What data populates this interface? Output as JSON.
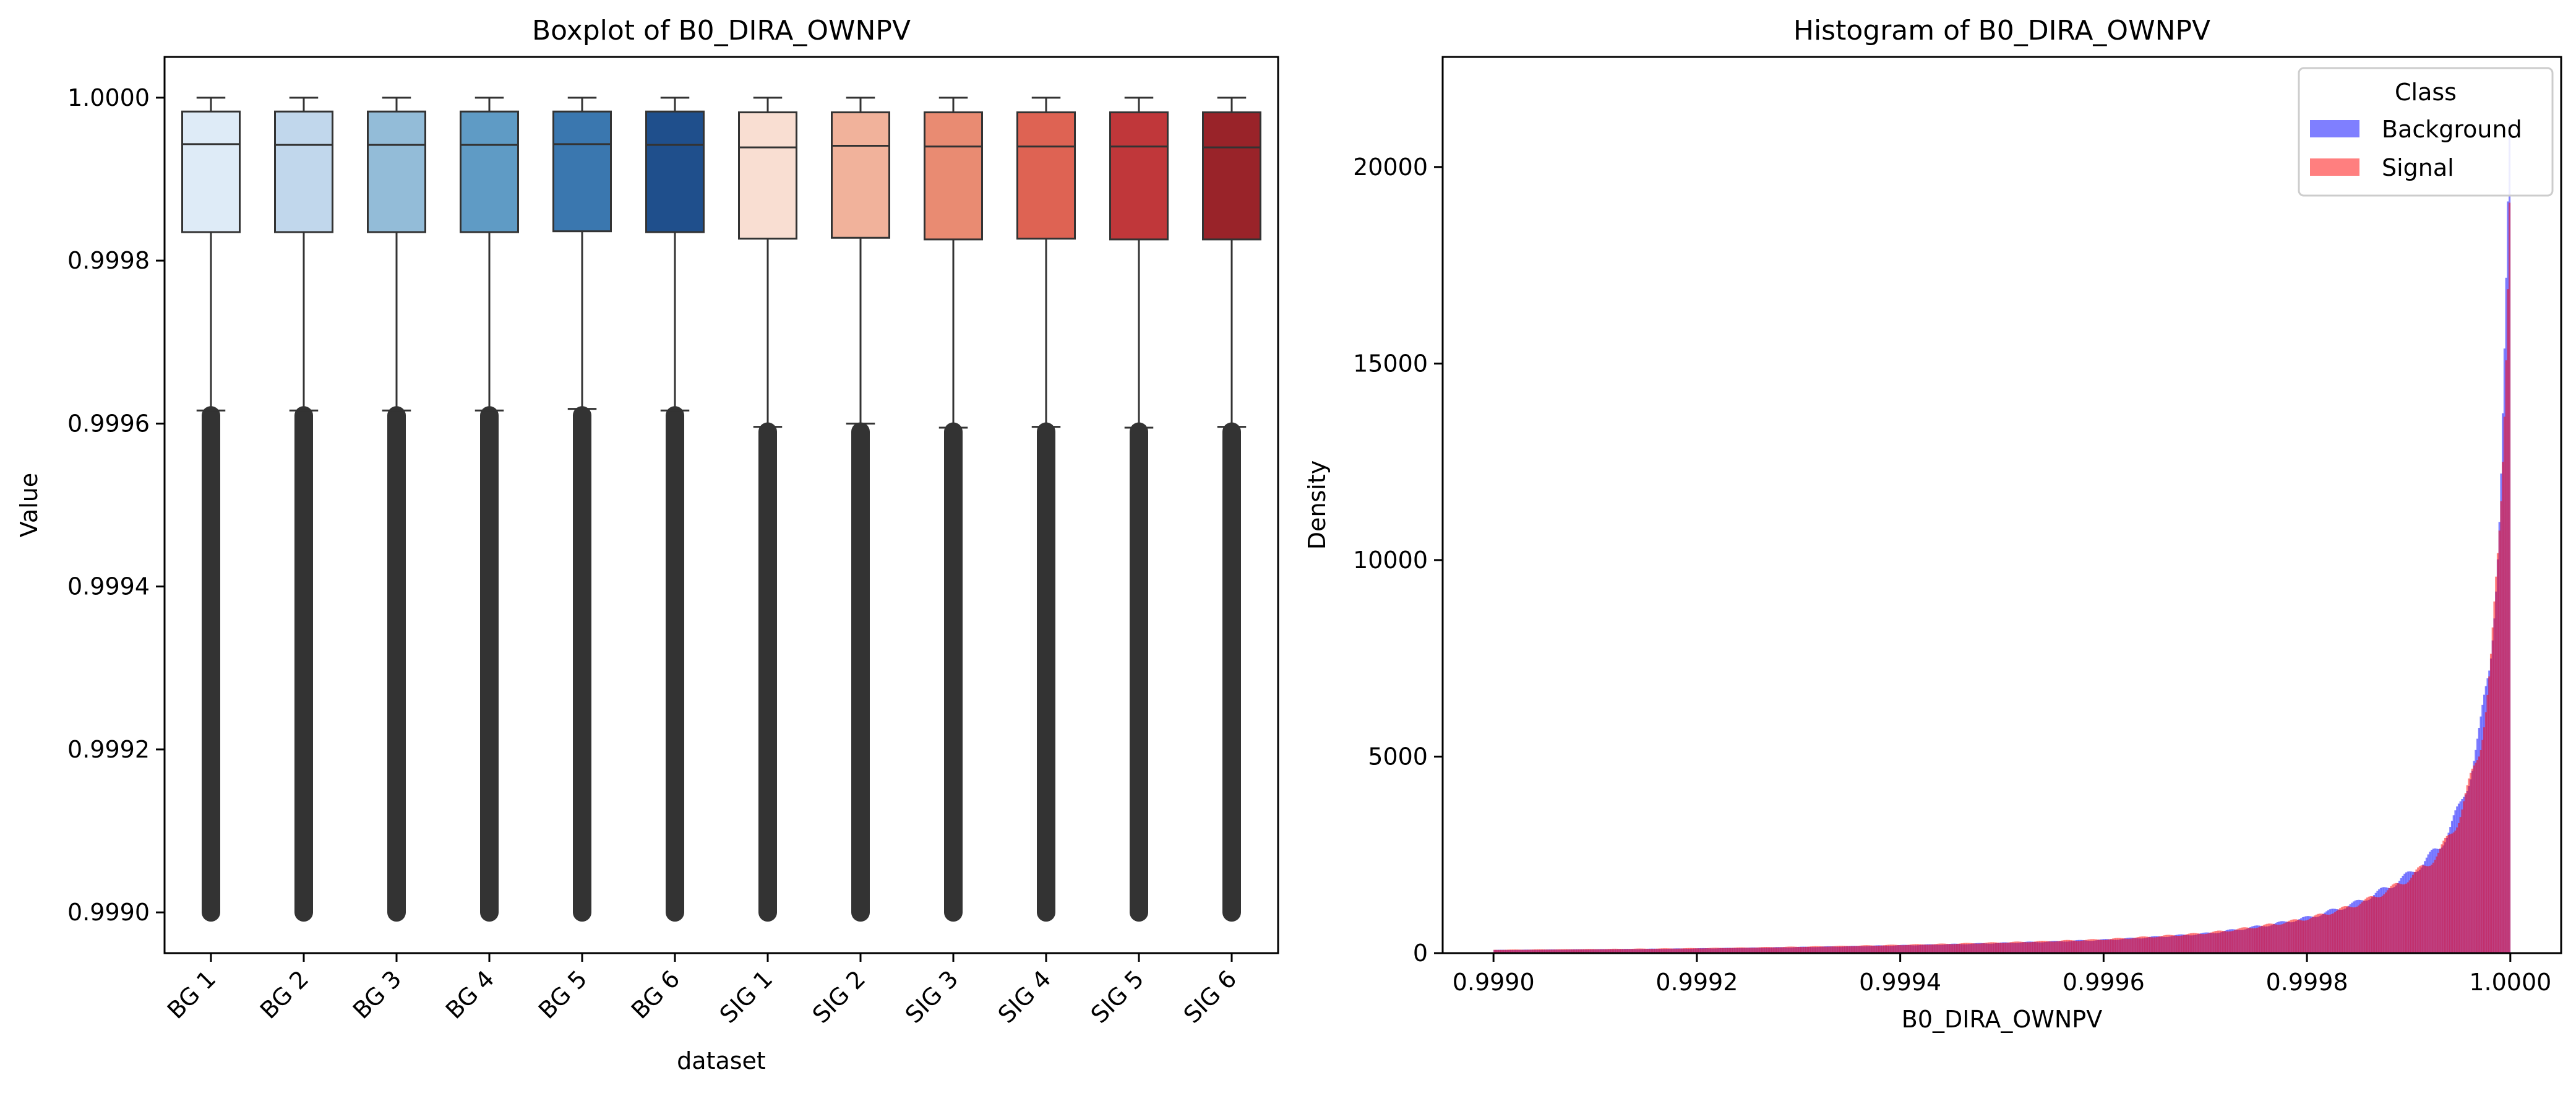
{
  "chart_data": [
    {
      "type": "box",
      "title": "Boxplot of B0_DIRA_OWNPV",
      "xlabel": "dataset",
      "ylabel": "Value",
      "ylim": [
        0.99895,
        1.00005
      ],
      "yticks": [
        "0.9990",
        "0.9992",
        "0.9994",
        "0.9996",
        "0.9998",
        "1.0000"
      ],
      "ytick_values": [
        0.999,
        0.9992,
        0.9994,
        0.9996,
        0.9998,
        1.0
      ],
      "grid": false,
      "categories": [
        "BG 1",
        "BG 2",
        "BG 3",
        "BG 4",
        "BG 5",
        "BG 6",
        "SIG 1",
        "SIG 2",
        "SIG 3",
        "SIG 4",
        "SIG 5",
        "SIG 6"
      ],
      "boxes": [
        {
          "q1": 0.999835,
          "median": 0.999943,
          "q3": 0.999983,
          "whislo": 0.999616,
          "whishi": 1.0,
          "flier_min": 0.999,
          "flier_max": 0.99961,
          "color": "#deebf7"
        },
        {
          "q1": 0.999835,
          "median": 0.999942,
          "q3": 0.999983,
          "whislo": 0.999616,
          "whishi": 1.0,
          "flier_min": 0.999,
          "flier_max": 0.99961,
          "color": "#c1d7ec"
        },
        {
          "q1": 0.999835,
          "median": 0.999942,
          "q3": 0.999983,
          "whislo": 0.999616,
          "whishi": 1.0,
          "flier_min": 0.999,
          "flier_max": 0.99961,
          "color": "#93bcd8"
        },
        {
          "q1": 0.999835,
          "median": 0.999942,
          "q3": 0.999983,
          "whislo": 0.999616,
          "whishi": 1.0,
          "flier_min": 0.999,
          "flier_max": 0.99961,
          "color": "#5f9bc5"
        },
        {
          "q1": 0.999836,
          "median": 0.999943,
          "q3": 0.999983,
          "whislo": 0.999618,
          "whishi": 1.0,
          "flier_min": 0.999,
          "flier_max": 0.99961,
          "color": "#3a77af"
        },
        {
          "q1": 0.999835,
          "median": 0.999942,
          "q3": 0.999983,
          "whislo": 0.999616,
          "whishi": 1.0,
          "flier_min": 0.999,
          "flier_max": 0.99961,
          "color": "#1f4f8c"
        },
        {
          "q1": 0.999827,
          "median": 0.999939,
          "q3": 0.999982,
          "whislo": 0.999596,
          "whishi": 1.0,
          "flier_min": 0.999,
          "flier_max": 0.99959,
          "color": "#f9ded2"
        },
        {
          "q1": 0.999828,
          "median": 0.999941,
          "q3": 0.999982,
          "whislo": 0.9996,
          "whishi": 1.0,
          "flier_min": 0.999,
          "flier_max": 0.99959,
          "color": "#f1b29b"
        },
        {
          "q1": 0.999826,
          "median": 0.99994,
          "q3": 0.999982,
          "whislo": 0.999595,
          "whishi": 1.0,
          "flier_min": 0.999,
          "flier_max": 0.99959,
          "color": "#e98b72"
        },
        {
          "q1": 0.999827,
          "median": 0.99994,
          "q3": 0.999982,
          "whislo": 0.999596,
          "whishi": 1.0,
          "flier_min": 0.999,
          "flier_max": 0.99959,
          "color": "#de6353"
        },
        {
          "q1": 0.999826,
          "median": 0.99994,
          "q3": 0.999982,
          "whislo": 0.999595,
          "whishi": 1.0,
          "flier_min": 0.999,
          "flier_max": 0.99959,
          "color": "#c0373a"
        },
        {
          "q1": 0.999826,
          "median": 0.999939,
          "q3": 0.999982,
          "whislo": 0.999596,
          "whishi": 1.0,
          "flier_min": 0.999,
          "flier_max": 0.99959,
          "color": "#992329"
        }
      ]
    },
    {
      "type": "histogram",
      "title": "Histogram of B0_DIRA_OWNPV",
      "xlabel": "B0_DIRA_OWNPV",
      "ylabel": "Density",
      "xlim": [
        0.99895,
        1.00005
      ],
      "ylim": [
        0,
        22800
      ],
      "xticks": [
        "0.9990",
        "0.9992",
        "0.9994",
        "0.9996",
        "0.9998",
        "1.0000"
      ],
      "xtick_values": [
        0.999,
        0.9992,
        0.9994,
        0.9996,
        0.9998,
        1.0
      ],
      "yticks": [
        "0",
        "5000",
        "10000",
        "15000",
        "20000"
      ],
      "ytick_values": [
        0,
        5000,
        10000,
        15000,
        20000
      ],
      "grid": false,
      "legend": {
        "title": "Class",
        "placement": "top-right"
      },
      "bin_range": [
        0.999,
        1.0
      ],
      "series": [
        {
          "name": "Background",
          "color": "#0000ff",
          "alpha": 0.5,
          "x": [
            0.999,
            0.9992,
            0.9994,
            0.9996,
            0.9997,
            0.9998,
            0.99985,
            0.9999,
            0.99993,
            0.99995,
            0.99997,
            0.99998,
            0.99999,
            0.999995,
            1.0
          ],
          "density": [
            80,
            120,
            200,
            340,
            500,
            900,
            1300,
            2000,
            2700,
            3700,
            5600,
            7500,
            11500,
            15500,
            21500
          ]
        },
        {
          "name": "Signal",
          "color": "#ff0000",
          "alpha": 0.5,
          "x": [
            0.999,
            0.9992,
            0.9994,
            0.9996,
            0.9997,
            0.9998,
            0.99985,
            0.9999,
            0.99993,
            0.99995,
            0.99997,
            0.99998,
            0.99999,
            0.999995,
            1.0
          ],
          "density": [
            85,
            125,
            210,
            350,
            510,
            880,
            1250,
            1900,
            2550,
            3500,
            5300,
            7100,
            11000,
            15000,
            21000
          ]
        }
      ]
    }
  ]
}
